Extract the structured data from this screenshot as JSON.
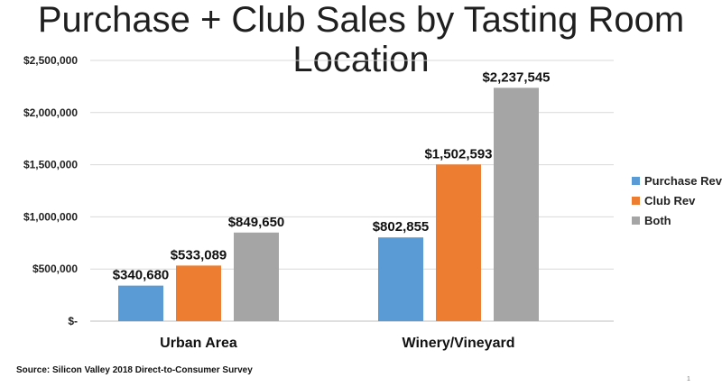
{
  "title": "Purchase + Club Sales by Tasting Room Location",
  "source": "Source: Silicon Valley 2018 Direct-to-Consumer Survey",
  "page_number": "1",
  "chart_data": {
    "type": "bar",
    "categories": [
      "Urban Area",
      "Winery/Vineyard"
    ],
    "series": [
      {
        "name": "Purchase Rev",
        "color": "#5b9bd5",
        "values": [
          340680,
          802855
        ],
        "labels": [
          "$340,680",
          "$802,855"
        ]
      },
      {
        "name": "Club Rev",
        "color": "#ed7d31",
        "values": [
          533089,
          1502593
        ],
        "labels": [
          "$533,089",
          "$1,502,593"
        ]
      },
      {
        "name": "Both",
        "color": "#a5a5a5",
        "values": [
          849650,
          2237545
        ],
        "labels": [
          "$849,650",
          "$2,237,545"
        ]
      }
    ],
    "ylim": [
      0,
      2500000
    ],
    "yticks": [
      0,
      500000,
      1000000,
      1500000,
      2000000,
      2500000
    ],
    "ytick_labels": [
      "$-",
      "$500,000",
      "$1,000,000",
      "$1,500,000",
      "$2,000,000",
      "$2,500,000"
    ],
    "grid": true,
    "legend_position": "right"
  }
}
